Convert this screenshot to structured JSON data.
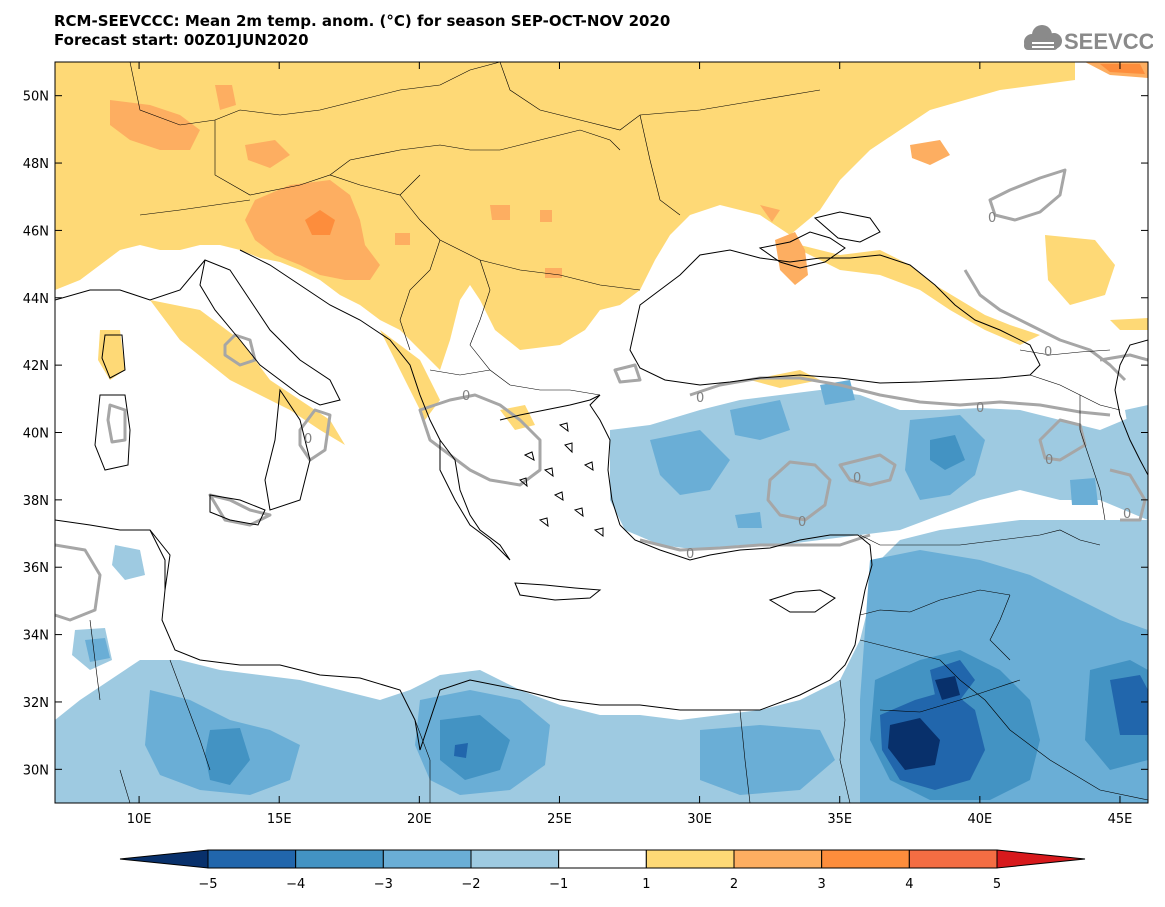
{
  "title": {
    "line1": "RCM-SEEVCCC: Mean 2m temp. anom. (°C) for season SEP-OCT-NOV 2020",
    "line2": "Forecast start: 00Z01JUN2020"
  },
  "logo": {
    "text": "SEEVCCC",
    "icon": "cloud-icon"
  },
  "map": {
    "lon_range": [
      7,
      46
    ],
    "lat_range": [
      29,
      51
    ],
    "lon_ticks": [
      {
        "v": 10,
        "label": "10E"
      },
      {
        "v": 15,
        "label": "15E"
      },
      {
        "v": 20,
        "label": "20E"
      },
      {
        "v": 25,
        "label": "25E"
      },
      {
        "v": 30,
        "label": "30E"
      },
      {
        "v": 35,
        "label": "35E"
      },
      {
        "v": 40,
        "label": "40E"
      },
      {
        "v": 45,
        "label": "45E"
      }
    ],
    "lat_ticks": [
      {
        "v": 30,
        "label": "30N"
      },
      {
        "v": 32,
        "label": "32N"
      },
      {
        "v": 34,
        "label": "34N"
      },
      {
        "v": 36,
        "label": "36N"
      },
      {
        "v": 38,
        "label": "38N"
      },
      {
        "v": 40,
        "label": "40N"
      },
      {
        "v": 42,
        "label": "42N"
      },
      {
        "v": 44,
        "label": "44N"
      },
      {
        "v": 46,
        "label": "46N"
      },
      {
        "v": 48,
        "label": "48N"
      },
      {
        "v": 50,
        "label": "50N"
      }
    ],
    "contour_zero_label": "0"
  },
  "colorbar": {
    "boundaries": [
      -5,
      -4,
      -3,
      -2,
      -1,
      1,
      2,
      3,
      4,
      5
    ],
    "labels": [
      "−5",
      "−4",
      "−3",
      "−2",
      "−1",
      "1",
      "2",
      "3",
      "4",
      "5"
    ],
    "colors": [
      "#08306b",
      "#2166ac",
      "#4393c3",
      "#6aaed6",
      "#9ecae1",
      "#ffffff",
      "#fed976",
      "#fdae61",
      "#fd8d3c",
      "#f46d43",
      "#d7191c"
    ]
  }
}
